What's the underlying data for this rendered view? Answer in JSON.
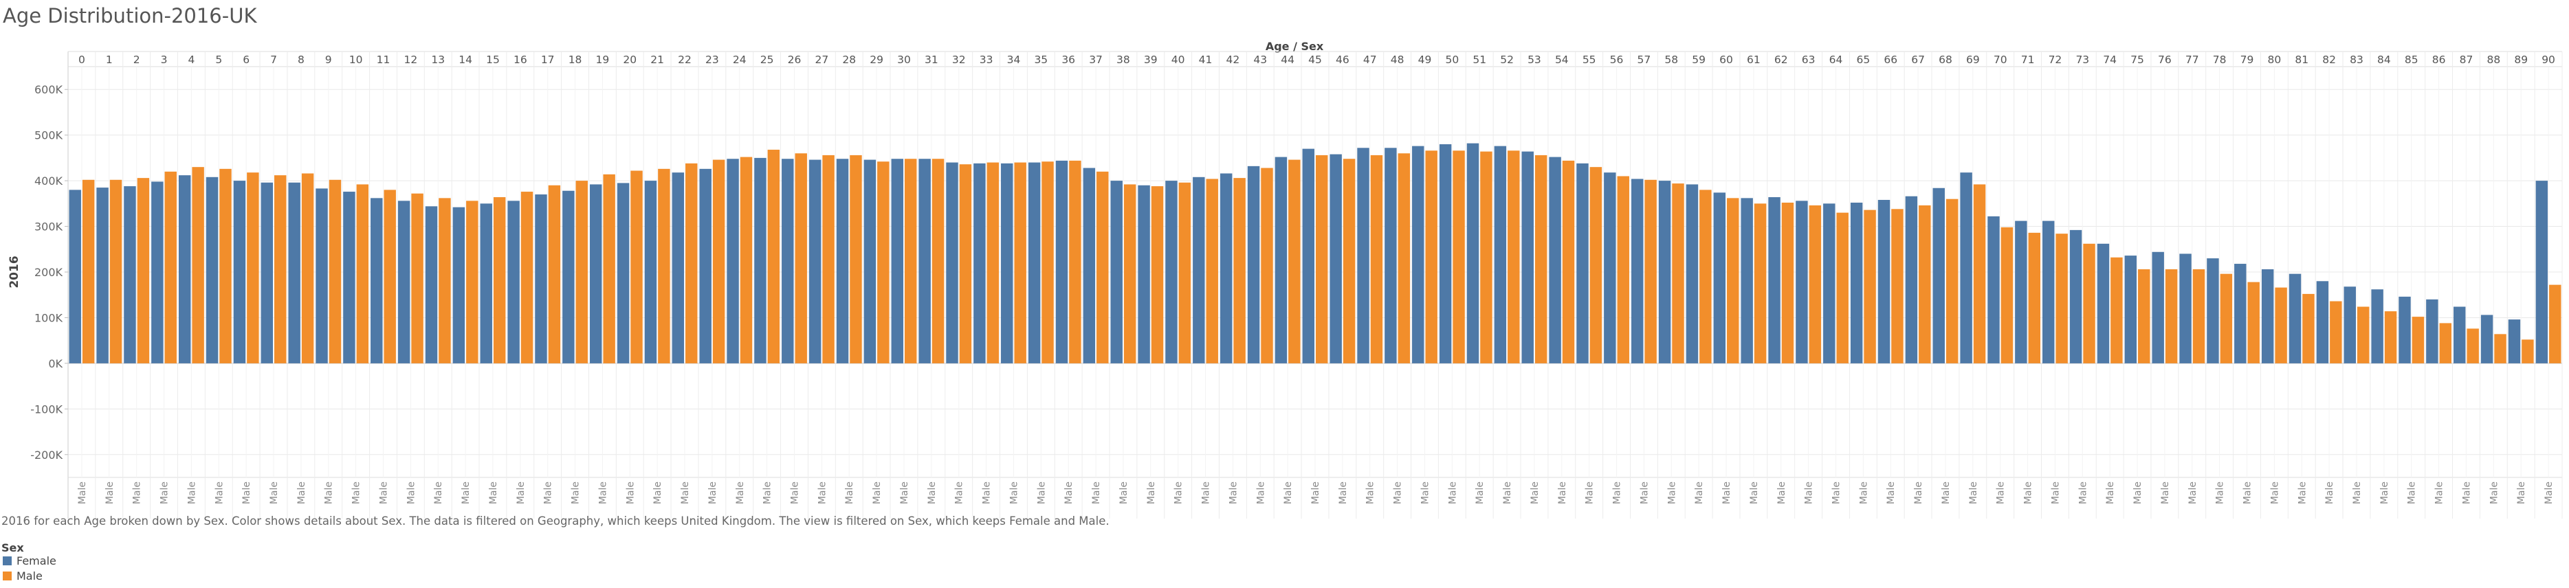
{
  "title": "Age Distribution-2016-UK",
  "caption": "2016 for each Age broken down by Sex.  Color shows details about Sex. The data is filtered on Geography, which keeps United Kingdom. The view is filtered on Sex, which keeps Female and Male.",
  "legend": {
    "title": "Sex",
    "items": [
      {
        "label": "Female",
        "color": "#4e79a7"
      },
      {
        "label": "Male",
        "color": "#f28e2b"
      }
    ]
  },
  "chart_data": {
    "type": "bar",
    "title": "Age Distribution-2016-UK",
    "column_header": "Age / Sex",
    "ylabel": "2016",
    "ylim": [
      -250000,
      650000
    ],
    "yticks": [
      -200000,
      -100000,
      0,
      100000,
      200000,
      300000,
      400000,
      500000,
      600000
    ],
    "ytick_labels": [
      "-200K",
      "-100K",
      "0K",
      "100K",
      "200K",
      "300K",
      "400K",
      "500K",
      "600K"
    ],
    "grid": true,
    "legend_position": "bottom-left",
    "bottom_label": "Male",
    "categories": [
      "0",
      "1",
      "2",
      "3",
      "4",
      "5",
      "6",
      "7",
      "8",
      "9",
      "10",
      "11",
      "12",
      "13",
      "14",
      "15",
      "16",
      "17",
      "18",
      "19",
      "20",
      "21",
      "22",
      "23",
      "24",
      "25",
      "26",
      "27",
      "28",
      "29",
      "30",
      "31",
      "32",
      "33",
      "34",
      "35",
      "36",
      "37",
      "38",
      "39",
      "40",
      "41",
      "42",
      "43",
      "44",
      "45",
      "46",
      "47",
      "48",
      "49",
      "50",
      "51",
      "52",
      "53",
      "54",
      "55",
      "56",
      "57",
      "58",
      "59",
      "60",
      "61",
      "62",
      "63",
      "64",
      "65",
      "66",
      "67",
      "68",
      "69",
      "70",
      "71",
      "72",
      "73",
      "74",
      "75",
      "76",
      "77",
      "78",
      "79",
      "80",
      "81",
      "82",
      "83",
      "84",
      "85",
      "86",
      "87",
      "88",
      "89",
      "90"
    ],
    "series": [
      {
        "name": "Female",
        "color": "#4e79a7",
        "values": [
          380000,
          385000,
          388000,
          398000,
          412000,
          408000,
          400000,
          396000,
          396000,
          383000,
          376000,
          362000,
          356000,
          344000,
          342000,
          350000,
          356000,
          370000,
          378000,
          392000,
          395000,
          400000,
          418000,
          426000,
          448000,
          450000,
          448000,
          446000,
          448000,
          446000,
          448000,
          448000,
          440000,
          438000,
          438000,
          440000,
          444000,
          428000,
          400000,
          390000,
          400000,
          408000,
          416000,
          432000,
          452000,
          470000,
          458000,
          472000,
          472000,
          476000,
          480000,
          482000,
          476000,
          464000,
          452000,
          438000,
          418000,
          404000,
          400000,
          392000,
          374000,
          362000,
          364000,
          356000,
          350000,
          352000,
          358000,
          366000,
          384000,
          418000,
          322000,
          312000,
          312000,
          292000,
          262000,
          236000,
          244000,
          240000,
          230000,
          218000,
          206000,
          196000,
          180000,
          168000,
          162000,
          146000,
          140000,
          124000,
          106000,
          96000,
          400000
        ]
      },
      {
        "name": "Male",
        "color": "#f28e2b",
        "values": [
          402000,
          402000,
          406000,
          420000,
          430000,
          426000,
          418000,
          412000,
          416000,
          402000,
          392000,
          380000,
          372000,
          362000,
          356000,
          364000,
          376000,
          390000,
          400000,
          414000,
          422000,
          426000,
          438000,
          446000,
          452000,
          468000,
          460000,
          456000,
          456000,
          442000,
          448000,
          448000,
          436000,
          440000,
          440000,
          442000,
          444000,
          420000,
          392000,
          388000,
          396000,
          404000,
          406000,
          428000,
          446000,
          456000,
          448000,
          456000,
          460000,
          466000,
          466000,
          464000,
          466000,
          456000,
          444000,
          430000,
          410000,
          402000,
          394000,
          380000,
          362000,
          350000,
          352000,
          346000,
          330000,
          336000,
          338000,
          346000,
          360000,
          392000,
          298000,
          286000,
          284000,
          262000,
          232000,
          206000,
          206000,
          206000,
          196000,
          178000,
          166000,
          152000,
          136000,
          124000,
          114000,
          102000,
          88000,
          76000,
          64000,
          52000,
          172000
        ]
      }
    ]
  }
}
